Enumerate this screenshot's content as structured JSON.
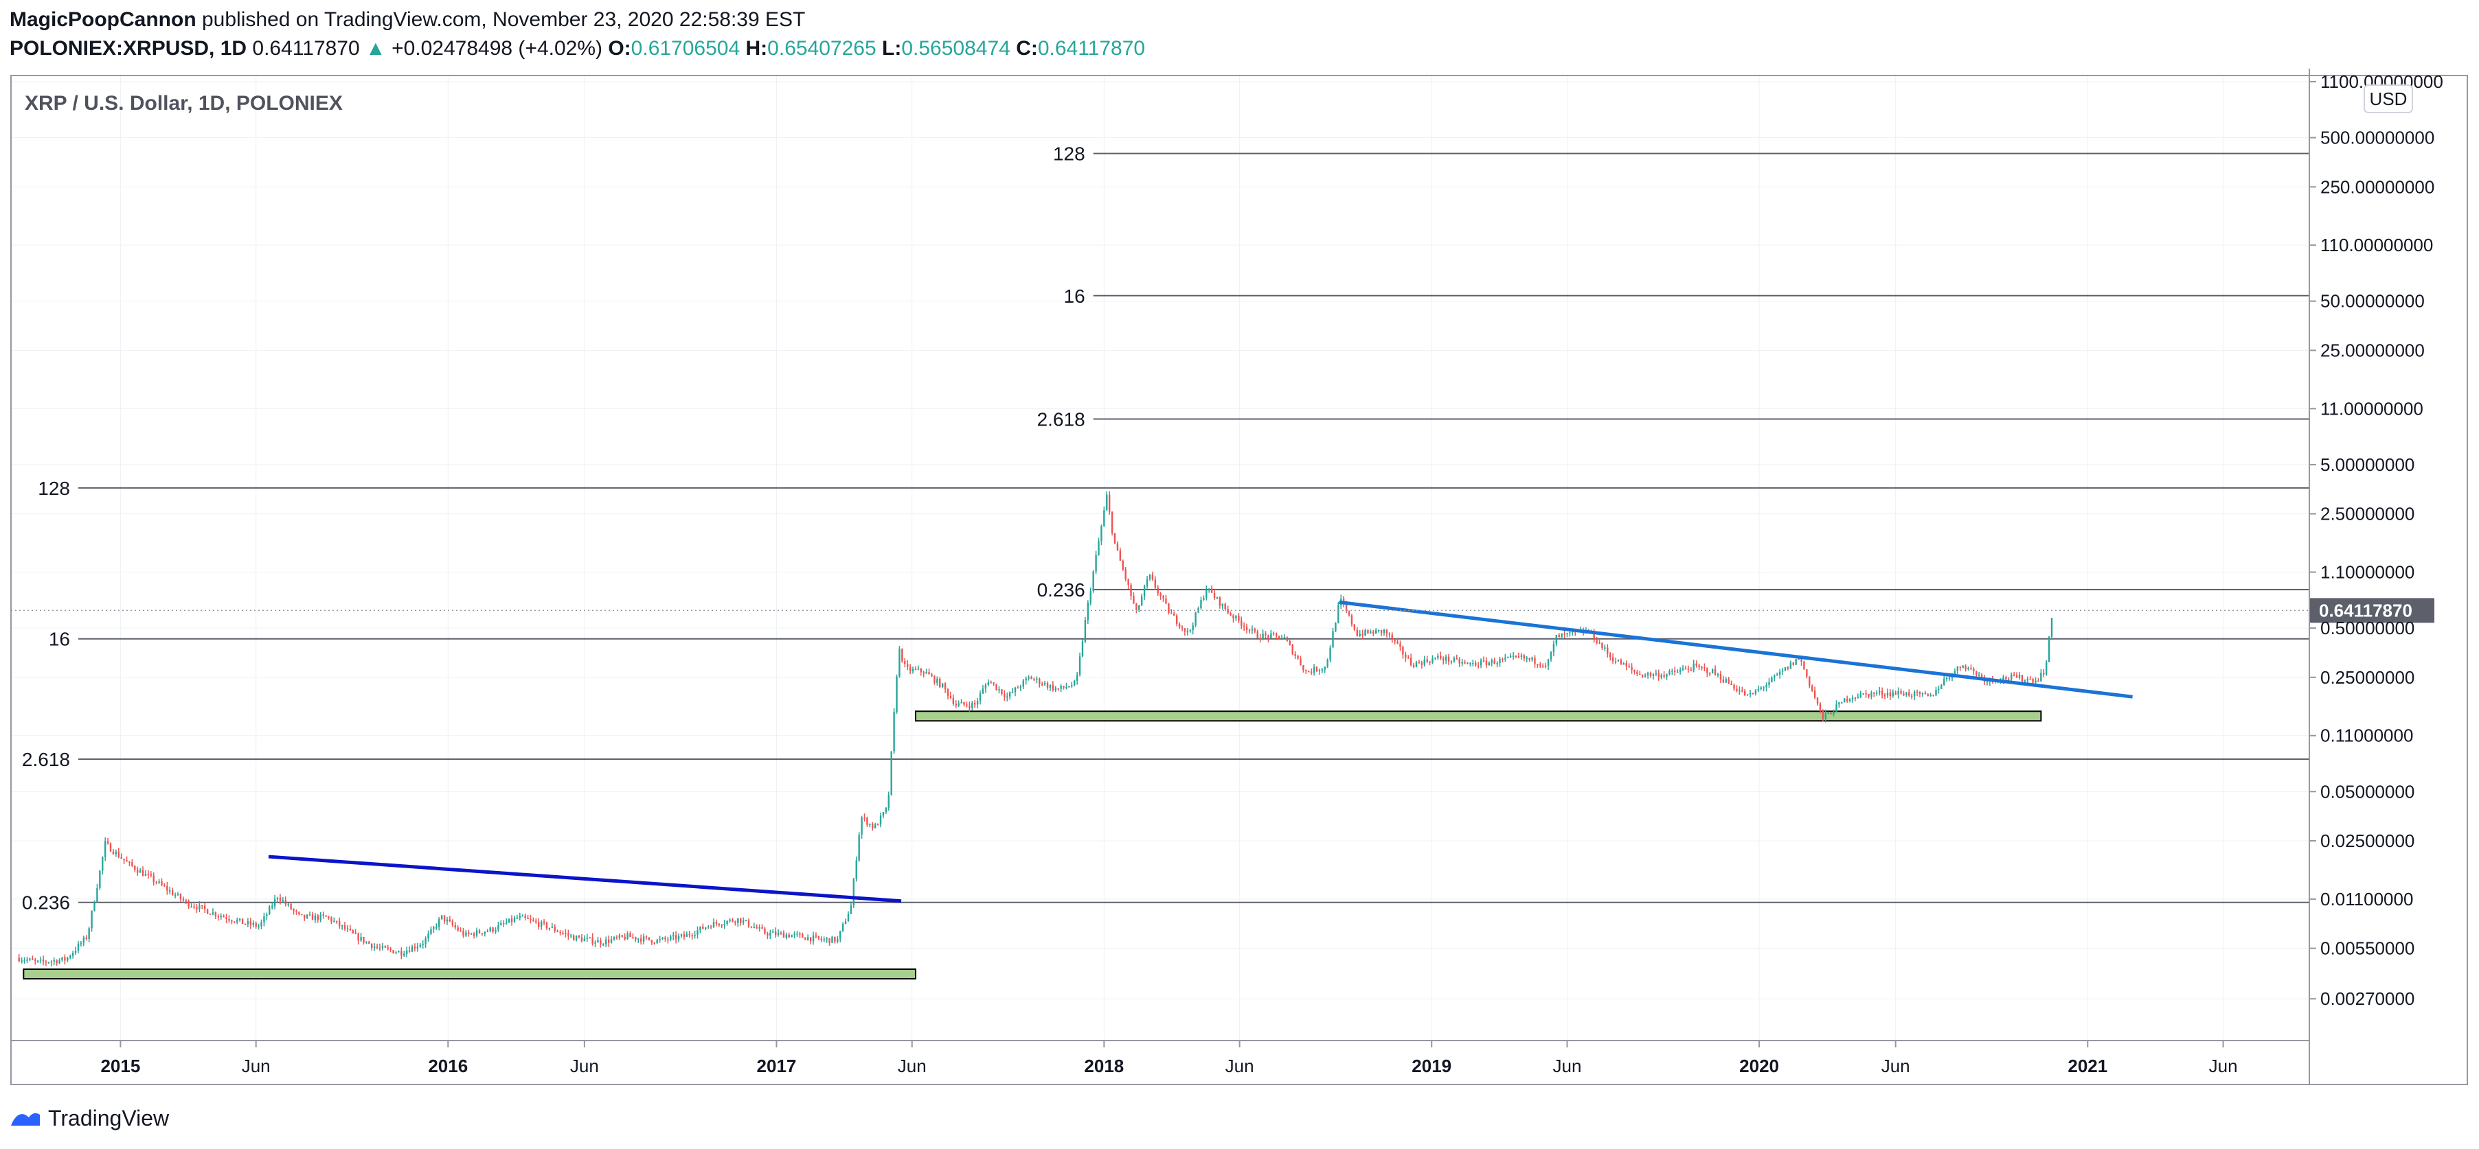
{
  "header": {
    "author": "MagicPoopCannon",
    "published": "published on TradingView.com, November 23, 2020 22:58:39 EST",
    "symbol": "POLONIEX:XRPUSD, 1D",
    "last": "0.64117870",
    "change_arrow": "▲",
    "change": "+0.02478498 (+4.02%)",
    "o_label": "O:",
    "o_val": "0.61706504",
    "h_label": "H:",
    "h_val": "0.65407265",
    "l_label": "L:",
    "l_val": "0.56508474",
    "c_label": "C:",
    "c_val": "0.64117870"
  },
  "footer": {
    "brand": "TradingView",
    "logo_icon": "tradingview-logo-icon"
  },
  "colors": {
    "up": "#26a69a",
    "candle_up": "#26a69a",
    "candle_down": "#ef5350",
    "trend_dark_blue": "#0a14c8",
    "trend_light_blue": "#1a73d6",
    "box_fill": "#a8d08d",
    "box_stroke": "#000000",
    "grid": "#eef1f5",
    "level_line": "#5d606b",
    "price_tag": "#5d606b"
  },
  "chart_data": {
    "type": "candlestick",
    "title": "XRP / U.S. Dollar, 1D, POLONIEX",
    "currency_label": "USD",
    "y_scale": "log",
    "ylim": [
      0.0015,
      1200
    ],
    "xlim": [
      "2014-09-01",
      "2021-09-05"
    ],
    "y_ticks": [
      "1100.00000000",
      "500.00000000",
      "250.00000000",
      "110.00000000",
      "50.00000000",
      "25.00000000",
      "11.00000000",
      "5.00000000",
      "2.50000000",
      "1.10000000",
      "0.50000000",
      "0.25000000",
      "0.11000000",
      "0.05000000",
      "0.02500000",
      "0.01100000",
      "0.00550000",
      "0.00270000"
    ],
    "x_ticks": [
      {
        "label": "2015",
        "date": "2015-01-01",
        "bold": true
      },
      {
        "label": "Jun",
        "date": "2015-06-01",
        "bold": false
      },
      {
        "label": "2016",
        "date": "2016-01-01",
        "bold": true
      },
      {
        "label": "Jun",
        "date": "2016-06-01",
        "bold": false
      },
      {
        "label": "2017",
        "date": "2017-01-01",
        "bold": true
      },
      {
        "label": "Jun",
        "date": "2017-06-01",
        "bold": false
      },
      {
        "label": "2018",
        "date": "2018-01-01",
        "bold": true
      },
      {
        "label": "Jun",
        "date": "2018-06-01",
        "bold": false
      },
      {
        "label": "2019",
        "date": "2019-01-01",
        "bold": true
      },
      {
        "label": "Jun",
        "date": "2019-06-01",
        "bold": false
      },
      {
        "label": "2020",
        "date": "2020-01-01",
        "bold": true
      },
      {
        "label": "Jun",
        "date": "2020-06-01",
        "bold": false
      },
      {
        "label": "2021",
        "date": "2021-01-01",
        "bold": true
      },
      {
        "label": "Jun",
        "date": "2021-06-01",
        "bold": false
      }
    ],
    "last_price": 0.6411787,
    "last_price_label": "0.64117870",
    "price_path": [
      [
        "2014-09-10",
        0.0048
      ],
      [
        "2014-10-01",
        0.0045
      ],
      [
        "2014-11-01",
        0.0047
      ],
      [
        "2014-11-25",
        0.0065
      ],
      [
        "2014-12-15",
        0.024
      ],
      [
        "2015-01-10",
        0.018
      ],
      [
        "2015-02-10",
        0.014
      ],
      [
        "2015-03-15",
        0.0105
      ],
      [
        "2015-04-15",
        0.009
      ],
      [
        "2015-05-20",
        0.0078
      ],
      [
        "2015-06-05",
        0.0075
      ],
      [
        "2015-06-25",
        0.0115
      ],
      [
        "2015-07-20",
        0.0085
      ],
      [
        "2015-08-20",
        0.0085
      ],
      [
        "2015-09-20",
        0.0065
      ],
      [
        "2015-10-15",
        0.0055
      ],
      [
        "2015-11-10",
        0.0052
      ],
      [
        "2015-12-05",
        0.006
      ],
      [
        "2015-12-25",
        0.0085
      ],
      [
        "2016-01-20",
        0.0066
      ],
      [
        "2016-02-20",
        0.0072
      ],
      [
        "2016-03-20",
        0.0085
      ],
      [
        "2016-04-20",
        0.0075
      ],
      [
        "2016-05-20",
        0.0064
      ],
      [
        "2016-06-20",
        0.006
      ],
      [
        "2016-07-20",
        0.0065
      ],
      [
        "2016-08-20",
        0.0061
      ],
      [
        "2016-09-20",
        0.0065
      ],
      [
        "2016-10-20",
        0.0077
      ],
      [
        "2016-11-20",
        0.0083
      ],
      [
        "2016-12-20",
        0.0068
      ],
      [
        "2017-01-20",
        0.0066
      ],
      [
        "2017-02-20",
        0.0062
      ],
      [
        "2017-03-10",
        0.0062
      ],
      [
        "2017-03-25",
        0.01
      ],
      [
        "2017-04-05",
        0.035
      ],
      [
        "2017-04-20",
        0.03
      ],
      [
        "2017-05-05",
        0.04
      ],
      [
        "2017-05-17",
        0.38
      ],
      [
        "2017-05-25",
        0.28
      ],
      [
        "2017-06-15",
        0.27
      ],
      [
        "2017-07-05",
        0.22
      ],
      [
        "2017-07-20",
        0.17
      ],
      [
        "2017-08-10",
        0.17
      ],
      [
        "2017-08-25",
        0.24
      ],
      [
        "2017-09-15",
        0.19
      ],
      [
        "2017-10-10",
        0.25
      ],
      [
        "2017-11-10",
        0.21
      ],
      [
        "2017-12-01",
        0.23
      ],
      [
        "2017-12-12",
        0.6
      ],
      [
        "2017-12-20",
        1.1
      ],
      [
        "2018-01-04",
        3.2
      ],
      [
        "2018-01-12",
        1.7
      ],
      [
        "2018-02-06",
        0.62
      ],
      [
        "2018-02-20",
        1.05
      ],
      [
        "2018-03-15",
        0.62
      ],
      [
        "2018-04-05",
        0.46
      ],
      [
        "2018-04-25",
        0.88
      ],
      [
        "2018-05-20",
        0.62
      ],
      [
        "2018-06-20",
        0.45
      ],
      [
        "2018-07-20",
        0.44
      ],
      [
        "2018-08-14",
        0.27
      ],
      [
        "2018-09-05",
        0.29
      ],
      [
        "2018-09-21",
        0.75
      ],
      [
        "2018-10-10",
        0.46
      ],
      [
        "2018-11-10",
        0.48
      ],
      [
        "2018-12-10",
        0.3
      ],
      [
        "2019-01-10",
        0.33
      ],
      [
        "2019-02-10",
        0.3
      ],
      [
        "2019-03-10",
        0.31
      ],
      [
        "2019-04-10",
        0.33
      ],
      [
        "2019-05-10",
        0.3
      ],
      [
        "2019-05-20",
        0.44
      ],
      [
        "2019-06-25",
        0.48
      ],
      [
        "2019-07-20",
        0.33
      ],
      [
        "2019-08-20",
        0.26
      ],
      [
        "2019-09-20",
        0.26
      ],
      [
        "2019-10-20",
        0.29
      ],
      [
        "2019-11-10",
        0.27
      ],
      [
        "2019-12-20",
        0.19
      ],
      [
        "2020-01-15",
        0.24
      ],
      [
        "2020-02-15",
        0.33
      ],
      [
        "2020-03-12",
        0.14
      ],
      [
        "2020-04-10",
        0.19
      ],
      [
        "2020-05-10",
        0.2
      ],
      [
        "2020-06-10",
        0.2
      ],
      [
        "2020-07-10",
        0.19
      ],
      [
        "2020-07-25",
        0.24
      ],
      [
        "2020-08-15",
        0.3
      ],
      [
        "2020-09-10",
        0.24
      ],
      [
        "2020-10-10",
        0.25
      ],
      [
        "2020-11-05",
        0.24
      ],
      [
        "2020-11-15",
        0.28
      ],
      [
        "2020-11-23",
        0.64
      ]
    ],
    "annotations": {
      "horizontal_levels": [
        {
          "label": "128",
          "value": 400,
          "start": "2017-12-20"
        },
        {
          "label": "16",
          "value": 54,
          "start": "2017-12-20"
        },
        {
          "label": "2.618",
          "value": 9.5,
          "start": "2017-12-20"
        },
        {
          "label": "128",
          "value": 3.6,
          "start": "2014-11-15"
        },
        {
          "label": "0.236",
          "value": 0.86,
          "start": "2017-12-20"
        },
        {
          "label": "16",
          "value": 0.43,
          "start": "2014-11-15"
        },
        {
          "label": "2.618",
          "value": 0.079,
          "start": "2014-11-15"
        },
        {
          "label": "0.236",
          "value": 0.0105,
          "start": "2014-11-15"
        }
      ],
      "trendlines": [
        {
          "color_key": "trend_dark_blue",
          "start": [
            "2015-06-15",
            0.02
          ],
          "end": [
            "2017-05-20",
            0.0107
          ]
        },
        {
          "color_key": "trend_light_blue",
          "start": [
            "2018-09-20",
            0.72
          ],
          "end": [
            "2021-02-20",
            0.19
          ]
        }
      ],
      "boxes": [
        {
          "start": [
            "2014-09-15",
            0.0041
          ],
          "end": [
            "2017-06-05",
            0.0036
          ]
        },
        {
          "start": [
            "2017-06-05",
            0.155
          ],
          "end": [
            "2020-11-10",
            0.137
          ]
        }
      ]
    }
  }
}
